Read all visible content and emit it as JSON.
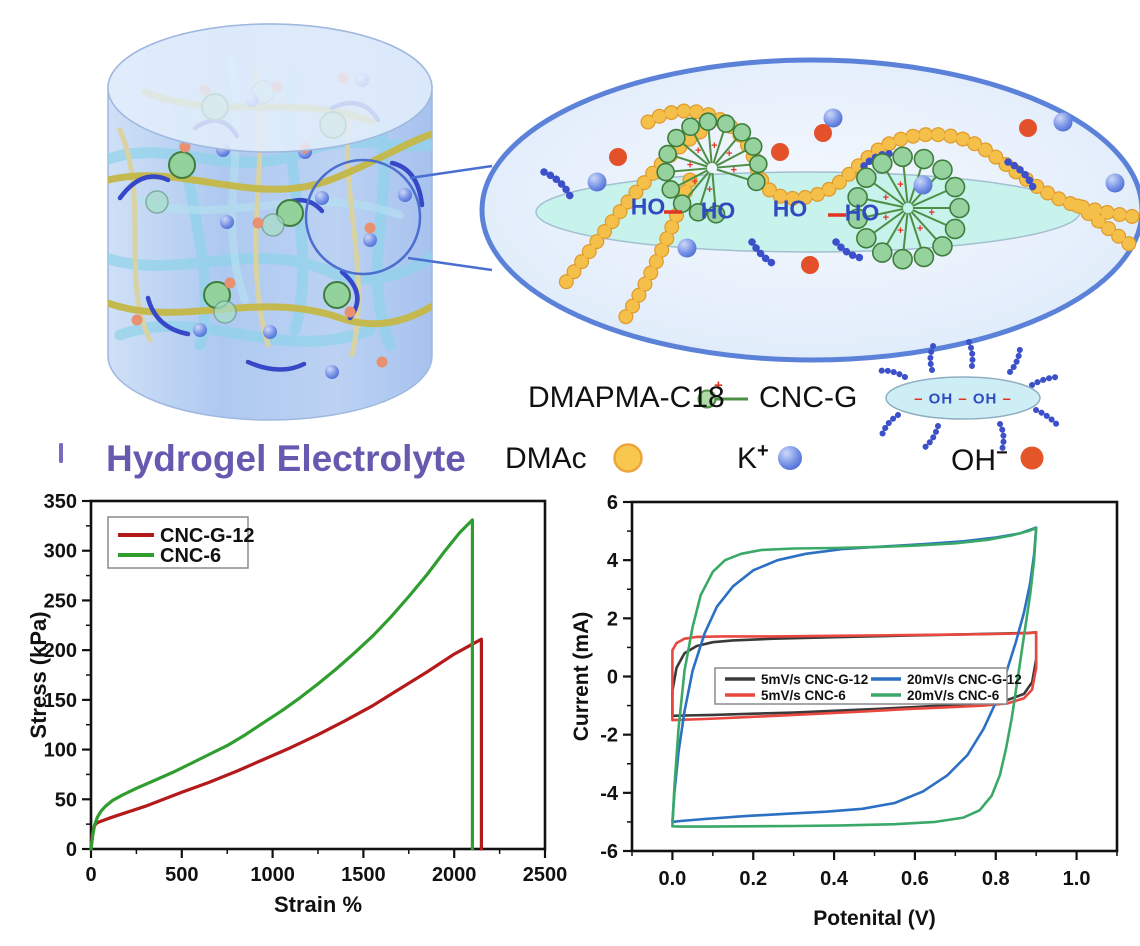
{
  "figure": {
    "title": "Hydrogel Electrolyte",
    "ho_labels": [
      "HO",
      "HO",
      "HO",
      "HO"
    ],
    "molecule_legend": {
      "dmapma_label": "DMAPMA-C18",
      "cncg_label": "CNC-G",
      "icon_dash": "–",
      "icon_oh": "OH",
      "dmac_label": "DMAc",
      "k_label": "K",
      "k_sup": "+",
      "oh_label": "OH",
      "oh_sup": "−"
    },
    "colors": {
      "title_purple": "#655ab0",
      "dmac_bead": "#f8c84e",
      "k_ion_blue": "#5d7fe0",
      "oh_ion_red": "#e4562a",
      "micelle_head_green": "#96d29e",
      "cnc_surface_cyan": "#c8f3ed",
      "grafted_chain_blue": "#3b50c9",
      "ellipse_border_blue": "#5b82d8"
    }
  },
  "chart_data": [
    {
      "type": "line",
      "title": "",
      "xlabel": "Strain %",
      "ylabel": "Stress (kPa)",
      "xlim": [
        0,
        2500
      ],
      "ylim": [
        0,
        350
      ],
      "xticks": [
        0,
        500,
        1000,
        1500,
        2000,
        2500
      ],
      "xtick_labels": [
        "0",
        "500",
        "1000",
        "1500",
        "2000",
        "2500"
      ],
      "yticks": [
        0,
        50,
        100,
        150,
        200,
        250,
        300,
        350
      ],
      "ytick_labels": [
        "0",
        "50",
        "100",
        "150",
        "200",
        "250",
        "300",
        "350"
      ],
      "x_minor_step": 250,
      "y_minor_step": 25,
      "grid": false,
      "legend_position": "top-left",
      "series": [
        {
          "name": "CNC-G-12",
          "color": "#b51a1a",
          "points": [
            [
              0,
              0
            ],
            [
              8,
              15
            ],
            [
              15,
              21
            ],
            [
              25,
              25
            ],
            [
              40,
              27
            ],
            [
              70,
              29
            ],
            [
              100,
              31
            ],
            [
              150,
              34
            ],
            [
              200,
              37
            ],
            [
              300,
              43
            ],
            [
              400,
              50
            ],
            [
              500,
              57
            ],
            [
              650,
              67
            ],
            [
              800,
              78
            ],
            [
              950,
              90
            ],
            [
              1100,
              102
            ],
            [
              1250,
              115
            ],
            [
              1400,
              129
            ],
            [
              1550,
              144
            ],
            [
              1700,
              161
            ],
            [
              1850,
              178
            ],
            [
              2000,
              196
            ],
            [
              2080,
              204
            ],
            [
              2150,
              211
            ],
            [
              2150,
              0
            ]
          ]
        },
        {
          "name": "CNC-6",
          "color": "#2f9e2f",
          "points": [
            [
              0,
              0
            ],
            [
              10,
              14
            ],
            [
              20,
              24
            ],
            [
              35,
              32
            ],
            [
              55,
              38
            ],
            [
              80,
              43
            ],
            [
              120,
              49
            ],
            [
              170,
              54
            ],
            [
              250,
              61
            ],
            [
              350,
              69
            ],
            [
              450,
              77
            ],
            [
              550,
              86
            ],
            [
              650,
              95
            ],
            [
              750,
              104
            ],
            [
              850,
              115
            ],
            [
              950,
              127
            ],
            [
              1050,
              139
            ],
            [
              1150,
              152
            ],
            [
              1250,
              166
            ],
            [
              1350,
              181
            ],
            [
              1450,
              197
            ],
            [
              1550,
              214
            ],
            [
              1650,
              233
            ],
            [
              1750,
              254
            ],
            [
              1850,
              276
            ],
            [
              1950,
              300
            ],
            [
              2030,
              318
            ],
            [
              2100,
              331
            ],
            [
              2100,
              0
            ]
          ]
        }
      ]
    },
    {
      "type": "line",
      "title": "",
      "xlabel": "Potenital (V)",
      "ylabel": "Current (mA)",
      "xlim": [
        -0.1,
        1.1
      ],
      "ylim": [
        -6,
        6
      ],
      "xticks": [
        0.0,
        0.2,
        0.4,
        0.6,
        0.8,
        1.0
      ],
      "xtick_labels": [
        "0.0",
        "0.2",
        "0.4",
        "0.6",
        "0.8",
        "1.0"
      ],
      "yticks": [
        -6,
        -4,
        -2,
        0,
        2,
        4,
        6
      ],
      "ytick_labels": [
        "-6",
        "-4",
        "-2",
        "0",
        "2",
        "4",
        "6"
      ],
      "x_minor_step": 0.1,
      "y_minor_step": 1,
      "grid": false,
      "legend_position": "middle-left",
      "series": [
        {
          "name": "5mV/s CNC-G-12",
          "color": "#3a3a3a",
          "points": [
            [
              0,
              -1.35
            ],
            [
              0,
              -0.5
            ],
            [
              0.01,
              0.3
            ],
            [
              0.03,
              0.8
            ],
            [
              0.06,
              1.05
            ],
            [
              0.1,
              1.18
            ],
            [
              0.15,
              1.24
            ],
            [
              0.25,
              1.3
            ],
            [
              0.4,
              1.35
            ],
            [
              0.55,
              1.4
            ],
            [
              0.7,
              1.44
            ],
            [
              0.8,
              1.47
            ],
            [
              0.88,
              1.5
            ],
            [
              0.9,
              1.52
            ],
            [
              0.9,
              0.6
            ],
            [
              0.89,
              -0.2
            ],
            [
              0.87,
              -0.6
            ],
            [
              0.83,
              -0.8
            ],
            [
              0.78,
              -0.9
            ],
            [
              0.7,
              -0.97
            ],
            [
              0.6,
              -1.05
            ],
            [
              0.5,
              -1.12
            ],
            [
              0.4,
              -1.18
            ],
            [
              0.3,
              -1.24
            ],
            [
              0.2,
              -1.28
            ],
            [
              0.1,
              -1.32
            ],
            [
              0.03,
              -1.34
            ],
            [
              0,
              -1.35
            ]
          ]
        },
        {
          "name": "5mV/s CNC-6",
          "color": "#e8483f",
          "points": [
            [
              0,
              -1.5
            ],
            [
              0,
              0.9
            ],
            [
              0.01,
              1.15
            ],
            [
              0.03,
              1.3
            ],
            [
              0.06,
              1.36
            ],
            [
              0.12,
              1.38
            ],
            [
              0.25,
              1.38
            ],
            [
              0.4,
              1.4
            ],
            [
              0.55,
              1.42
            ],
            [
              0.7,
              1.44
            ],
            [
              0.8,
              1.46
            ],
            [
              0.88,
              1.49
            ],
            [
              0.9,
              1.52
            ],
            [
              0.9,
              0.3
            ],
            [
              0.89,
              -0.45
            ],
            [
              0.87,
              -0.75
            ],
            [
              0.83,
              -0.92
            ],
            [
              0.77,
              -1.0
            ],
            [
              0.68,
              -1.06
            ],
            [
              0.58,
              -1.12
            ],
            [
              0.45,
              -1.22
            ],
            [
              0.3,
              -1.32
            ],
            [
              0.18,
              -1.4
            ],
            [
              0.08,
              -1.46
            ],
            [
              0.02,
              -1.49
            ],
            [
              0,
              -1.5
            ]
          ]
        },
        {
          "name": "20mV/s CNC-G-12",
          "color": "#2b70c2",
          "points": [
            [
              0,
              -5.0
            ],
            [
              0.005,
              -4.0
            ],
            [
              0.015,
              -2.6
            ],
            [
              0.03,
              -1.2
            ],
            [
              0.05,
              0.2
            ],
            [
              0.08,
              1.5
            ],
            [
              0.11,
              2.4
            ],
            [
              0.15,
              3.1
            ],
            [
              0.2,
              3.65
            ],
            [
              0.26,
              4.0
            ],
            [
              0.33,
              4.22
            ],
            [
              0.42,
              4.38
            ],
            [
              0.52,
              4.47
            ],
            [
              0.62,
              4.55
            ],
            [
              0.72,
              4.65
            ],
            [
              0.8,
              4.78
            ],
            [
              0.86,
              4.92
            ],
            [
              0.9,
              5.12
            ],
            [
              0.895,
              4.2
            ],
            [
              0.885,
              3.2
            ],
            [
              0.87,
              2.2
            ],
            [
              0.85,
              1.2
            ],
            [
              0.825,
              0.1
            ],
            [
              0.8,
              -0.9
            ],
            [
              0.77,
              -1.8
            ],
            [
              0.73,
              -2.7
            ],
            [
              0.68,
              -3.4
            ],
            [
              0.62,
              -3.95
            ],
            [
              0.55,
              -4.35
            ],
            [
              0.47,
              -4.55
            ],
            [
              0.38,
              -4.65
            ],
            [
              0.28,
              -4.72
            ],
            [
              0.18,
              -4.8
            ],
            [
              0.08,
              -4.9
            ],
            [
              0.02,
              -4.97
            ],
            [
              0,
              -5.0
            ]
          ]
        },
        {
          "name": "20mV/s CNC-6",
          "color": "#3aa968",
          "points": [
            [
              0,
              -5.15
            ],
            [
              0.005,
              -3.8
            ],
            [
              0.015,
              -1.8
            ],
            [
              0.03,
              0.2
            ],
            [
              0.05,
              1.7
            ],
            [
              0.07,
              2.8
            ],
            [
              0.1,
              3.6
            ],
            [
              0.13,
              4.0
            ],
            [
              0.17,
              4.22
            ],
            [
              0.22,
              4.35
            ],
            [
              0.3,
              4.4
            ],
            [
              0.4,
              4.42
            ],
            [
              0.5,
              4.45
            ],
            [
              0.6,
              4.5
            ],
            [
              0.7,
              4.58
            ],
            [
              0.78,
              4.7
            ],
            [
              0.84,
              4.85
            ],
            [
              0.88,
              5.0
            ],
            [
              0.9,
              5.1
            ],
            [
              0.895,
              4.0
            ],
            [
              0.885,
              2.8
            ],
            [
              0.87,
              1.4
            ],
            [
              0.855,
              0.0
            ],
            [
              0.84,
              -1.4
            ],
            [
              0.825,
              -2.5
            ],
            [
              0.81,
              -3.4
            ],
            [
              0.79,
              -4.1
            ],
            [
              0.76,
              -4.6
            ],
            [
              0.72,
              -4.85
            ],
            [
              0.65,
              -5.0
            ],
            [
              0.55,
              -5.08
            ],
            [
              0.42,
              -5.12
            ],
            [
              0.3,
              -5.14
            ],
            [
              0.18,
              -5.15
            ],
            [
              0.08,
              -5.16
            ],
            [
              0.02,
              -5.16
            ],
            [
              0,
              -5.15
            ]
          ]
        }
      ]
    }
  ]
}
